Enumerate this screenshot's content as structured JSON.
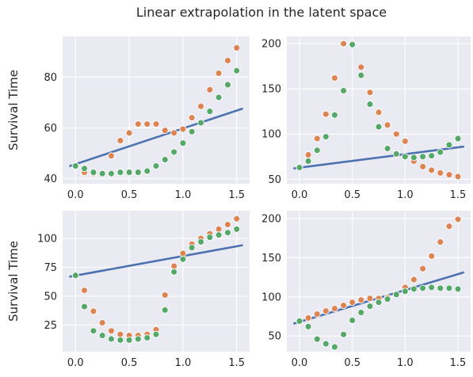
{
  "figure": {
    "title": "Linear extrapolation in the latent space"
  },
  "colors": {
    "panel_bg": "#eaeaf2",
    "grid": "#ffffff",
    "line": "#4c72b0",
    "series_orange": "#dd8452",
    "series_green": "#55a868"
  },
  "chart_data": [
    {
      "type": "scatter",
      "position": "top-left",
      "ylabel": "Survival Time",
      "xlim": [
        -0.12,
        1.62
      ],
      "ylim": [
        38,
        96
      ],
      "xticks": [
        0.0,
        0.5,
        1.0,
        1.5
      ],
      "xtick_labels": [
        "0.0",
        "0.5",
        "1.0",
        "1.5"
      ],
      "yticks": [
        40,
        60,
        80
      ],
      "ytick_labels": [
        "40",
        "60",
        "80"
      ],
      "grid": true,
      "line": {
        "x": [
          -0.05,
          1.55
        ],
        "y": [
          45,
          67.5
        ]
      },
      "series": [
        {
          "color": "orange",
          "x": [
            0.0,
            0.083,
            0.167,
            0.25,
            0.333,
            0.417,
            0.5,
            0.583,
            0.667,
            0.75,
            0.833,
            0.917,
            1.0,
            1.083,
            1.167,
            1.25,
            1.333,
            1.417,
            1.5
          ],
          "y": [
            45,
            42.5,
            42,
            42,
            49,
            55,
            58,
            61.5,
            61.5,
            61.5,
            59,
            58,
            59.5,
            64,
            68.5,
            75,
            81.5,
            86.5,
            91.5
          ]
        },
        {
          "color": "green",
          "x": [
            0.0,
            0.083,
            0.167,
            0.25,
            0.333,
            0.417,
            0.5,
            0.583,
            0.667,
            0.75,
            0.833,
            0.917,
            1.0,
            1.083,
            1.167,
            1.25,
            1.333,
            1.417,
            1.5
          ],
          "y": [
            45,
            44,
            42.5,
            42,
            42,
            42.5,
            42.5,
            42.5,
            43,
            45,
            47.5,
            50.5,
            54,
            58.5,
            62,
            66.5,
            72,
            77,
            82.5
          ]
        }
      ]
    },
    {
      "type": "scatter",
      "position": "top-right",
      "ylabel": "",
      "xlim": [
        -0.12,
        1.62
      ],
      "ylim": [
        45,
        208
      ],
      "xticks": [
        0.0,
        0.5,
        1.0,
        1.5
      ],
      "xtick_labels": [
        "0.0",
        "0.5",
        "1.0",
        "1.5"
      ],
      "yticks": [
        50,
        100,
        150,
        200
      ],
      "ytick_labels": [
        "50",
        "100",
        "150",
        "200"
      ],
      "grid": true,
      "line": {
        "x": [
          -0.05,
          1.55
        ],
        "y": [
          62,
          86
        ]
      },
      "series": [
        {
          "color": "orange",
          "x": [
            0.0,
            0.083,
            0.167,
            0.25,
            0.333,
            0.417,
            0.5,
            0.583,
            0.667,
            0.75,
            0.833,
            0.917,
            1.0,
            1.083,
            1.167,
            1.25,
            1.333,
            1.417,
            1.5
          ],
          "y": [
            63,
            77,
            95,
            122,
            162,
            200,
            200,
            174,
            146,
            124,
            110,
            100,
            92,
            70,
            64,
            60,
            57,
            55,
            53
          ]
        },
        {
          "color": "green",
          "x": [
            0.0,
            0.083,
            0.167,
            0.25,
            0.333,
            0.417,
            0.5,
            0.583,
            0.667,
            0.75,
            0.833,
            0.917,
            1.0,
            1.083,
            1.167,
            1.25,
            1.333,
            1.417,
            1.5
          ],
          "y": [
            63,
            70,
            82,
            97,
            121,
            148,
            199,
            165,
            133,
            108,
            84,
            78,
            75,
            74,
            75,
            76,
            80,
            88,
            95
          ]
        }
      ]
    },
    {
      "type": "scatter",
      "position": "bottom-left",
      "ylabel": "Survival Time",
      "xlim": [
        -0.12,
        1.62
      ],
      "ylim": [
        2,
        124
      ],
      "xticks": [
        0.0,
        0.5,
        1.0,
        1.5
      ],
      "xtick_labels": [
        "0.0",
        "0.5",
        "1.0",
        "1.5"
      ],
      "yticks": [
        25,
        50,
        75,
        100
      ],
      "ytick_labels": [
        "25",
        "50",
        "75",
        "100"
      ],
      "grid": true,
      "line": {
        "x": [
          -0.05,
          1.55
        ],
        "y": [
          67,
          94
        ]
      },
      "series": [
        {
          "color": "orange",
          "x": [
            0.0,
            0.083,
            0.167,
            0.25,
            0.333,
            0.417,
            0.5,
            0.583,
            0.667,
            0.75,
            0.833,
            0.917,
            1.0,
            1.083,
            1.167,
            1.25,
            1.333,
            1.417,
            1.5
          ],
          "y": [
            68,
            55,
            37,
            27,
            20,
            17,
            16,
            16,
            17,
            21,
            51,
            76,
            87,
            95,
            100,
            104,
            108,
            112,
            117
          ]
        },
        {
          "color": "green",
          "x": [
            0.0,
            0.083,
            0.167,
            0.25,
            0.333,
            0.417,
            0.5,
            0.583,
            0.667,
            0.75,
            0.833,
            0.917,
            1.0,
            1.083,
            1.167,
            1.25,
            1.333,
            1.417,
            1.5
          ],
          "y": [
            68,
            41,
            20,
            16,
            13,
            12,
            12,
            13,
            14,
            17,
            38,
            71,
            82,
            92,
            97,
            101,
            103,
            105,
            108
          ]
        }
      ]
    },
    {
      "type": "scatter",
      "position": "bottom-right",
      "ylabel": "",
      "xlim": [
        -0.12,
        1.62
      ],
      "ylim": [
        30,
        210
      ],
      "xticks": [
        0.0,
        0.5,
        1.0,
        1.5
      ],
      "xtick_labels": [
        "0.0",
        "0.5",
        "1.0",
        "1.5"
      ],
      "yticks": [
        50,
        100,
        150,
        200
      ],
      "ytick_labels": [
        "50",
        "100",
        "150",
        "200"
      ],
      "grid": true,
      "line": {
        "x": [
          -0.05,
          1.55
        ],
        "y": [
          66,
          131
        ]
      },
      "series": [
        {
          "color": "orange",
          "x": [
            0.0,
            0.083,
            0.167,
            0.25,
            0.333,
            0.417,
            0.5,
            0.583,
            0.667,
            0.75,
            0.833,
            0.917,
            1.0,
            1.083,
            1.167,
            1.25,
            1.333,
            1.417,
            1.5
          ],
          "y": [
            69,
            73,
            78,
            82,
            85,
            89,
            93,
            96,
            98,
            98,
            99,
            103,
            112,
            122,
            136,
            152,
            170,
            190,
            199
          ]
        },
        {
          "color": "green",
          "x": [
            0.0,
            0.083,
            0.167,
            0.25,
            0.333,
            0.417,
            0.5,
            0.583,
            0.667,
            0.75,
            0.833,
            0.917,
            1.0,
            1.083,
            1.167,
            1.25,
            1.333,
            1.417,
            1.5
          ],
          "y": [
            69,
            62,
            46,
            40,
            36,
            52,
            70,
            80,
            88,
            93,
            97,
            103,
            107,
            110,
            111,
            112,
            111,
            111,
            110
          ]
        }
      ]
    }
  ]
}
